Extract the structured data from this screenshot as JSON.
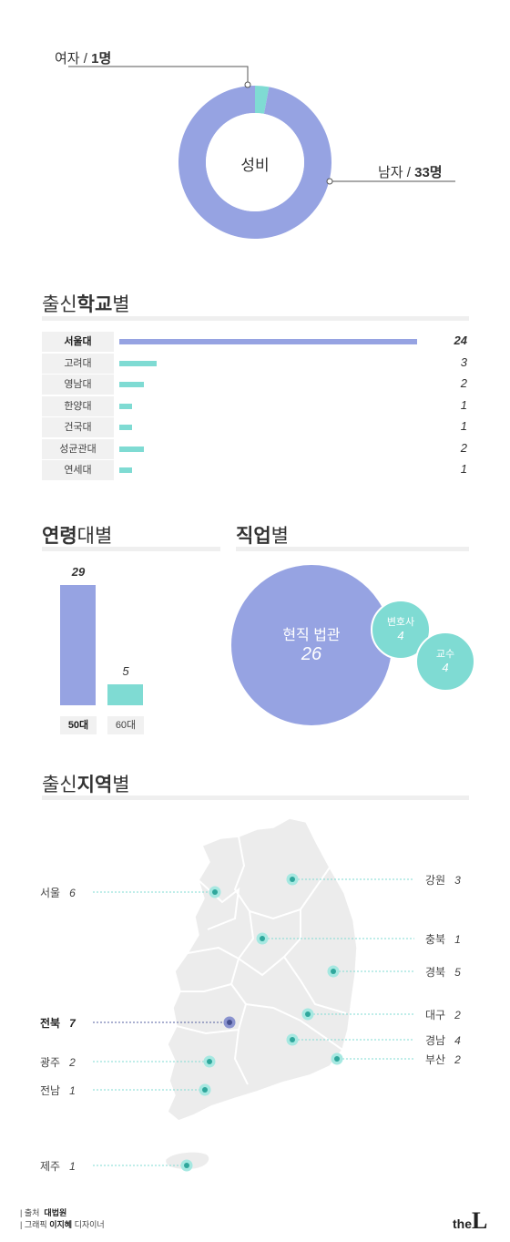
{
  "colors": {
    "primary": "#96a3e2",
    "secondary": "#7fdbd3",
    "dark_dot": "#5560a0",
    "map_fill": "#ececec",
    "rule": "#efefef"
  },
  "gender": {
    "center_label": "성비",
    "female_label": "여자 / ",
    "female_value": "1명",
    "male_label": "남자 / ",
    "male_value": "33명"
  },
  "sections": {
    "school": {
      "normal_a": "출신",
      "bold": "학교",
      "normal_b": "별"
    },
    "age": {
      "bold": "연령",
      "normal": "대별"
    },
    "job": {
      "bold": "직업",
      "normal": "별"
    },
    "region": {
      "normal_a": "출신",
      "bold": "지역",
      "normal_b": "별"
    }
  },
  "chart_data": [
    {
      "type": "pie",
      "title": "성비",
      "categories": [
        "여자",
        "남자"
      ],
      "values": [
        1,
        33
      ],
      "unit": "명"
    },
    {
      "type": "bar",
      "title": "출신학교별",
      "categories": [
        "서울대",
        "고려대",
        "영남대",
        "한양대",
        "건국대",
        "성균관대",
        "연세대"
      ],
      "values": [
        24,
        3,
        2,
        1,
        1,
        2,
        1
      ],
      "orientation": "horizontal",
      "xlim": [
        0,
        24
      ]
    },
    {
      "type": "bar",
      "title": "연령대별",
      "categories": [
        "50대",
        "60대"
      ],
      "values": [
        29,
        5
      ],
      "ylim": [
        0,
        29
      ]
    },
    {
      "type": "scatter",
      "title": "직업별",
      "categories": [
        "현직 법관",
        "변호사",
        "교수"
      ],
      "values": [
        26,
        4,
        4
      ],
      "note_kind": "bubble"
    },
    {
      "type": "scatter",
      "title": "출신지역별",
      "categories": [
        "강원",
        "충북",
        "경북",
        "대구",
        "경남",
        "부산",
        "서울",
        "전북",
        "광주",
        "전남",
        "제주"
      ],
      "values": [
        3,
        1,
        5,
        2,
        4,
        2,
        6,
        7,
        2,
        1,
        1
      ],
      "note_kind": "map"
    }
  ],
  "footer": {
    "source_label": "출처",
    "source_value": "대법원",
    "graphic_label": "그래픽",
    "graphic_name": "이지혜",
    "graphic_role": "디자이너"
  },
  "logo": {
    "small": "the",
    "big": "L"
  }
}
